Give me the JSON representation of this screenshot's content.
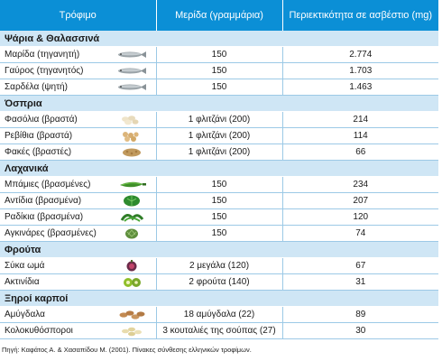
{
  "header": {
    "col_food": "Τρόφιμο",
    "col_portion": "Μερίδα (γραμμάρια)",
    "col_calcium": "Περιεκτικότητα σε ασβέστιο (mg)"
  },
  "groups": [
    {
      "label": "Ψάρια & Θαλασσινά",
      "items": [
        {
          "name": "Μαρίδα (τηγανητή)",
          "icon": "fish-icon",
          "portion": "150",
          "calcium": "2.774"
        },
        {
          "name": "Γαύρος (τηγανητός)",
          "icon": "fish-icon",
          "portion": "150",
          "calcium": "1.703"
        },
        {
          "name": "Σαρδέλα (ψητή)",
          "icon": "fish-icon",
          "portion": "150",
          "calcium": "1.463"
        }
      ]
    },
    {
      "label": "Όσπρια",
      "items": [
        {
          "name": "Φασόλια (βραστά)",
          "icon": "beans-icon",
          "portion": "1 φλιτζάνι (200)",
          "calcium": "214"
        },
        {
          "name": "Ρεβίθια (βραστά)",
          "icon": "chickpeas-icon",
          "portion": "1 φλιτζάνι (200)",
          "calcium": "114"
        },
        {
          "name": "Φακές (βραστές)",
          "icon": "lentils-icon",
          "portion": "1 φλιτζάνι (200)",
          "calcium": "66"
        }
      ]
    },
    {
      "label": "Λαχανικά",
      "items": [
        {
          "name": "Μπάμιες (βρασμένες)",
          "icon": "okra-icon",
          "portion": "150",
          "calcium": "234"
        },
        {
          "name": "Αντίδια (βρασμένα)",
          "icon": "greens-icon",
          "portion": "150",
          "calcium": "207"
        },
        {
          "name": "Ραδίκια (βρασμένα)",
          "icon": "chicory-icon",
          "portion": "150",
          "calcium": "120"
        },
        {
          "name": "Αγκινάρες (βρασμένες)",
          "icon": "artichoke-icon",
          "portion": "150",
          "calcium": "74"
        }
      ]
    },
    {
      "label": "Φρούτα",
      "items": [
        {
          "name": "Σύκα ωμά",
          "icon": "fig-icon",
          "portion": "2 μεγάλα (120)",
          "calcium": "67"
        },
        {
          "name": "Ακτινίδια",
          "icon": "kiwi-icon",
          "portion": "2 φρούτα (140)",
          "calcium": "31"
        }
      ]
    },
    {
      "label": "Ξηροί καρποί",
      "items": [
        {
          "name": "Αμύγδαλα",
          "icon": "almonds-icon",
          "portion": "18 αμύγδαλα (22)",
          "calcium": "89"
        },
        {
          "name": "Κολοκυθόσποροι",
          "icon": "pumpkin-seeds-icon",
          "portion": "3 κουταλιές της σούπας (27)",
          "calcium": "30"
        }
      ]
    }
  ],
  "source": "Πηγή: Καφάτος Α. & Χασαπίδου Μ. (2001). Πίνακες σύνθεσης ελληνικών τροφίμων.",
  "colors": {
    "header": "#0b8fd6",
    "category": "#cfe6f5",
    "rule": "#9cc9e6"
  }
}
